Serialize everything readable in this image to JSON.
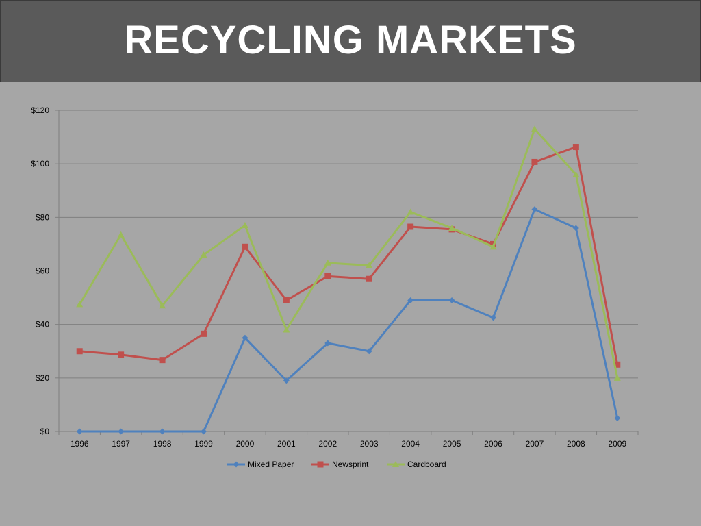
{
  "title": "RECYCLING MARKETS",
  "chart_data": {
    "type": "line",
    "title": "",
    "xlabel": "",
    "ylabel": "",
    "categories": [
      "1996",
      "1997",
      "1998",
      "1999",
      "2000",
      "2001",
      "2002",
      "2003",
      "2004",
      "2005",
      "2006",
      "2007",
      "2008",
      "2009"
    ],
    "ylim": [
      0,
      120
    ],
    "yticks": [
      0,
      20,
      40,
      60,
      80,
      100,
      120
    ],
    "ytick_labels": [
      "$0",
      "$20",
      "$40",
      "$60",
      "$80",
      "$100",
      "$120"
    ],
    "grid": true,
    "legend_position": "bottom",
    "series": [
      {
        "name": "Mixed Paper",
        "color": "#4f81bd",
        "marker": "diamond",
        "values": [
          0,
          0,
          0,
          0,
          35,
          19,
          33,
          30,
          49,
          49,
          42.5,
          83,
          76,
          5
        ]
      },
      {
        "name": "Newsprint",
        "color": "#c0504d",
        "marker": "square",
        "values": [
          30,
          28.7,
          26.7,
          36.5,
          69,
          49,
          58,
          57,
          76.5,
          75.5,
          70,
          100.7,
          106.3,
          25
        ]
      },
      {
        "name": "Cardboard",
        "color": "#9bbb59",
        "marker": "triangle",
        "values": [
          47.5,
          73.5,
          47,
          66,
          77,
          38,
          63,
          62,
          82,
          76,
          69,
          113,
          96,
          20
        ]
      }
    ]
  }
}
